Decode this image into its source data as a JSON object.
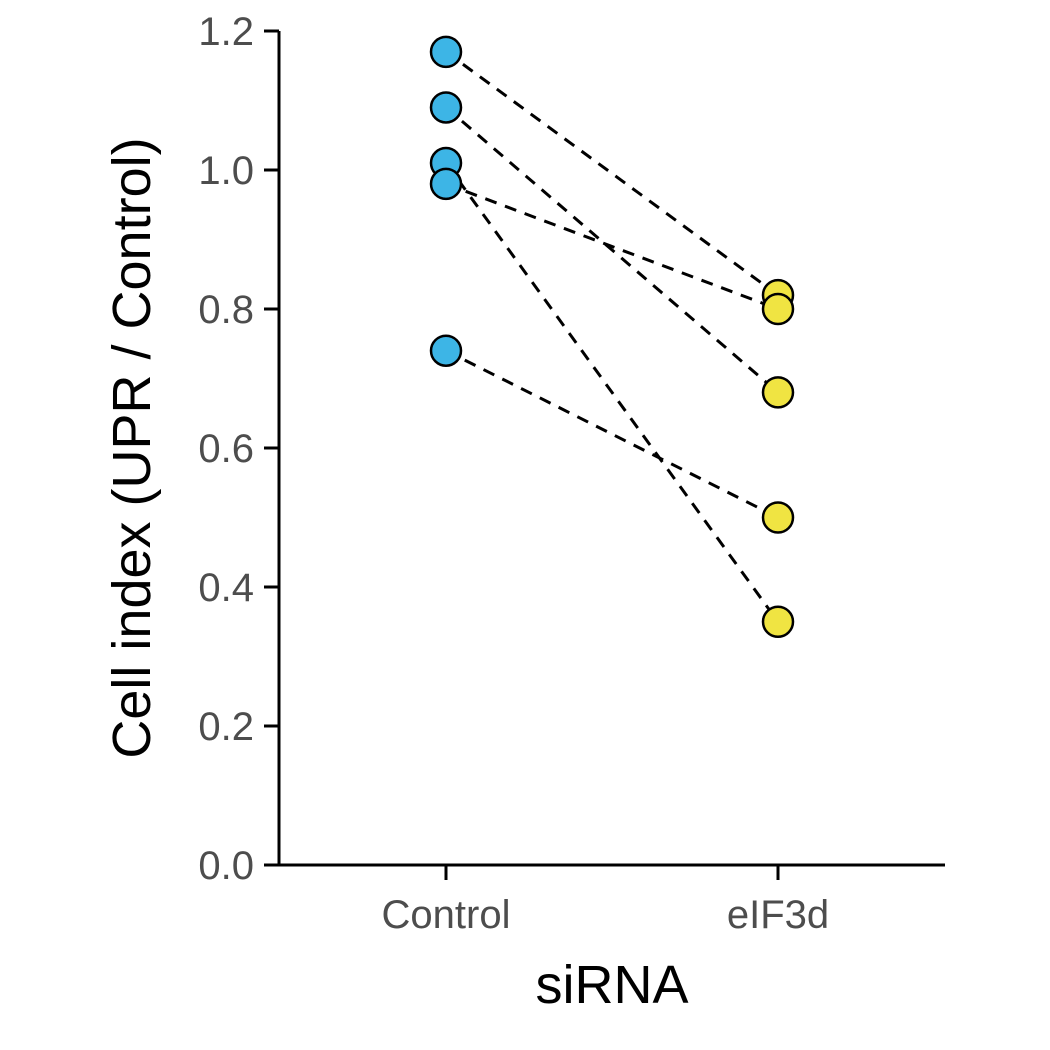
{
  "chart_data": {
    "type": "scatter",
    "xlabel": "siRNA",
    "ylabel": "Cell index (UPR / Control)",
    "categories": [
      "Control",
      "eIF3d"
    ],
    "ylim": [
      0,
      1.2
    ],
    "yticks": [
      "0.0",
      "0.2",
      "0.4",
      "0.6",
      "0.8",
      "1.0",
      "1.2"
    ],
    "grid": false,
    "pairs": [
      {
        "values": [
          1.17,
          0.82
        ]
      },
      {
        "values": [
          1.09,
          0.68
        ]
      },
      {
        "values": [
          1.01,
          0.35
        ]
      },
      {
        "values": [
          0.98,
          0.8
        ]
      },
      {
        "values": [
          0.74,
          0.5
        ]
      }
    ],
    "colors": {
      "Control": "#3db5e6",
      "eIF3d": "#f0e442"
    },
    "line_style": "dashed"
  }
}
